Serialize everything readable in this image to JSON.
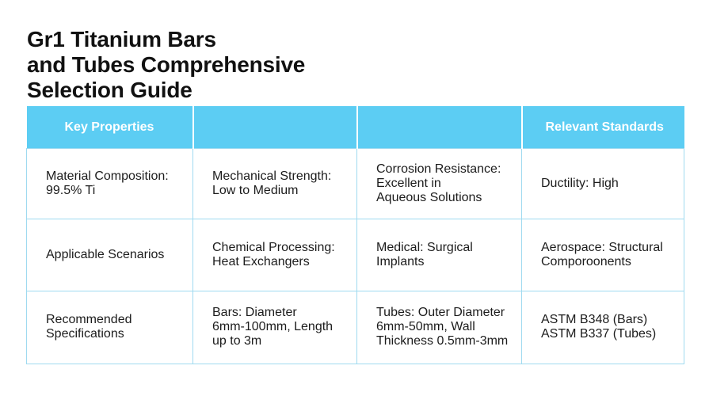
{
  "title": "Gr1 Titanium Bars\nand Tubes Comprehensive\nSelection Guide",
  "header": [
    "Key Properties",
    "",
    "",
    "Relevant Standards"
  ],
  "rows": [
    [
      "Material Composition:\n99.5% Ti",
      "Mechanical Strength:\nLow to Medium",
      "Corrosion Resistance:\nExcellent in\nAqueous Solutions",
      "Ductility: High"
    ],
    [
      "Applicable Scenarios",
      "Chemical Processing:\nHeat Exchangers",
      "Medical: Surgical\nImplants",
      "Aerospace: Structural\nComporoonents"
    ],
    [
      "Recommended\nSpecifications",
      "Bars: Diameter\n6mm-100mm, Length\nup to 3m",
      "Tubes: Outer Diameter\n6mm-50mm, Wall\nThickness 0.5mm-3mm",
      "ASTM B348 (Bars)\nASTM B337 (Tubes)"
    ]
  ],
  "colors": {
    "header_bg": "#5ccdf3",
    "header_text": "#ffffff",
    "grid_line": "#9fdaf0"
  }
}
